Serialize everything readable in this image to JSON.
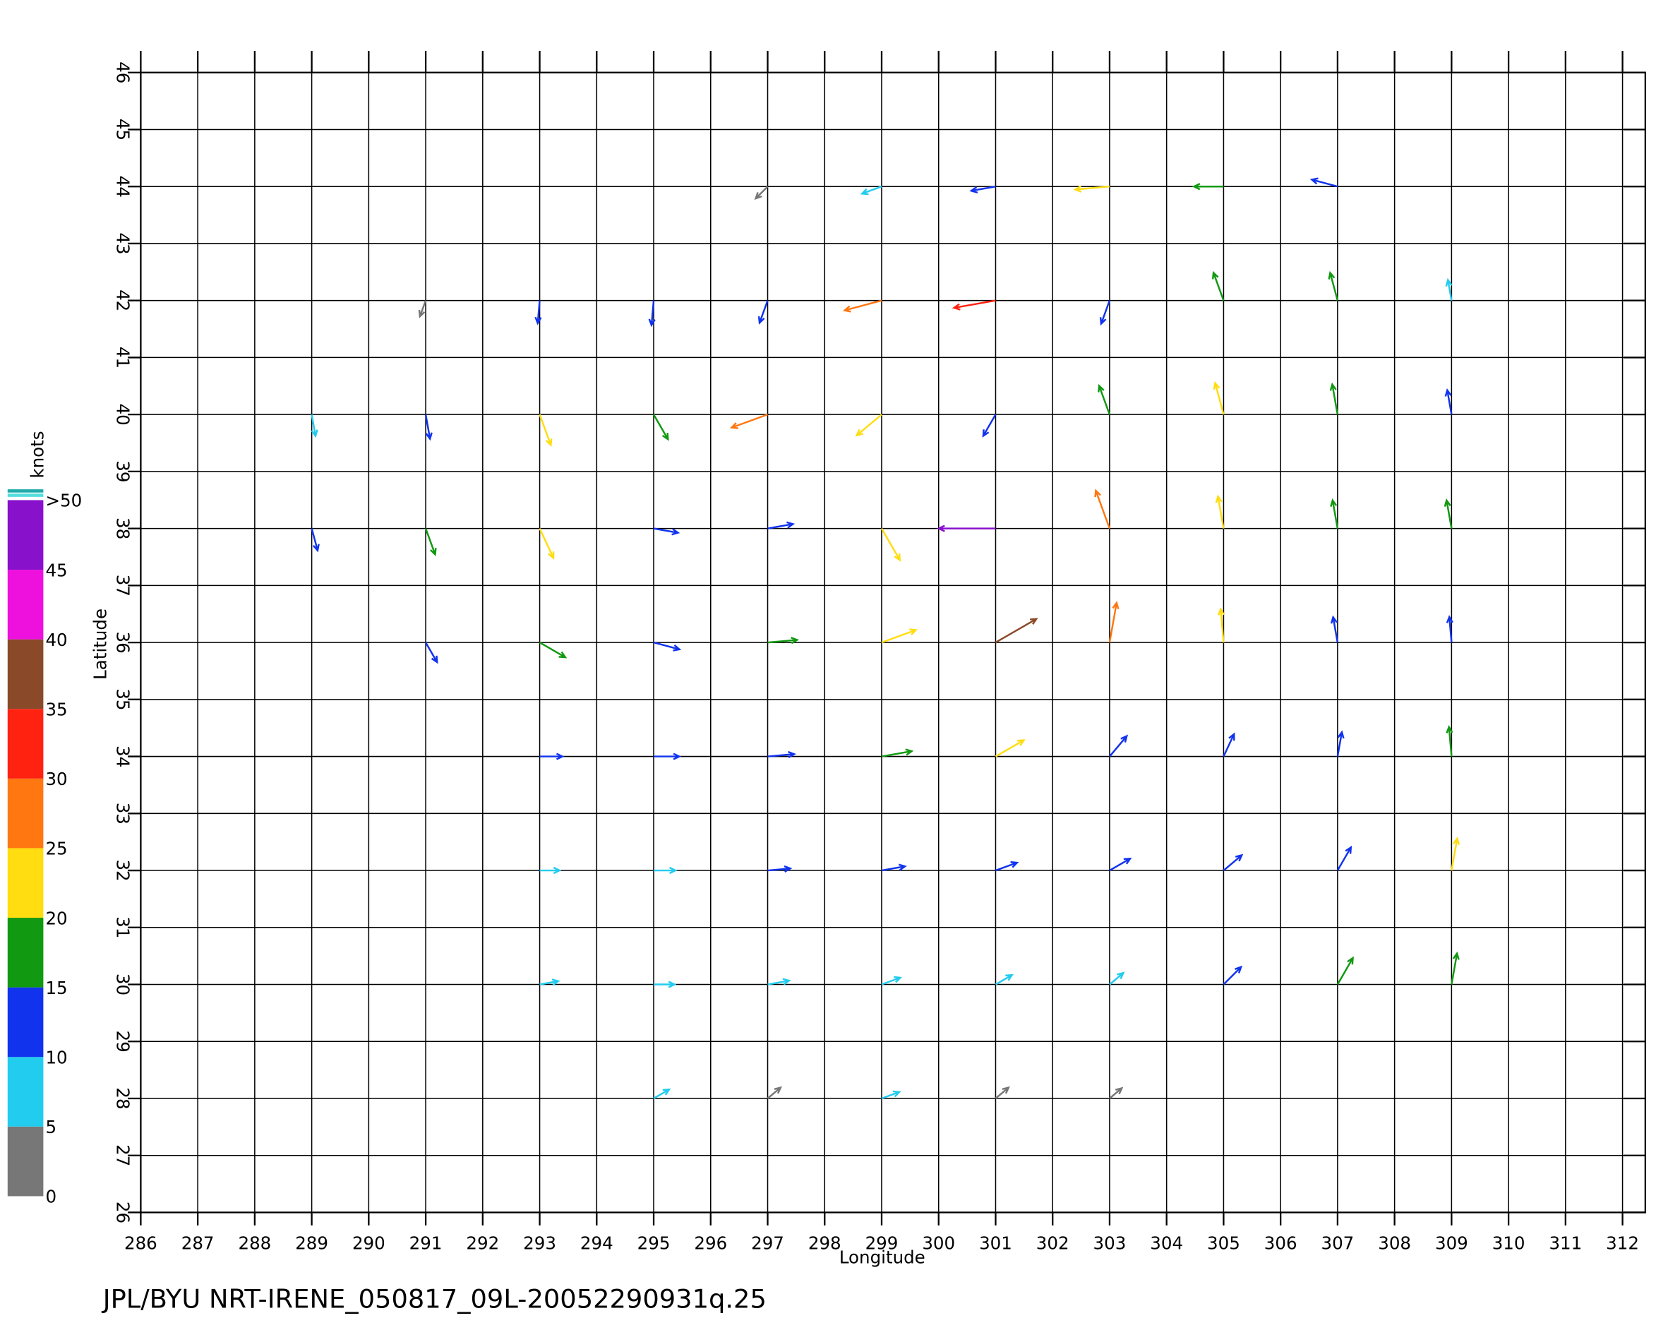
{
  "chart_data": {
    "type": "vector",
    "caption": "JPL/BYU  NRT-IRENE_050817_09L-20052290931q.25",
    "x_label": "Longitude",
    "y_label": "Latitude",
    "xlim": [
      286,
      312.4
    ],
    "ylim": [
      26,
      46
    ],
    "xticks": [
      286,
      287,
      288,
      289,
      290,
      291,
      292,
      293,
      294,
      295,
      296,
      297,
      298,
      299,
      300,
      301,
      302,
      303,
      304,
      305,
      306,
      307,
      308,
      309,
      310,
      311,
      312
    ],
    "yticks": [
      26,
      27,
      28,
      29,
      30,
      31,
      32,
      33,
      34,
      35,
      36,
      37,
      38,
      39,
      40,
      41,
      42,
      43,
      44,
      45,
      46
    ],
    "grid": true,
    "colorbar": {
      "label": "knots",
      "ticks": [
        0,
        5,
        10,
        15,
        20,
        25,
        30,
        35,
        40,
        45,
        {
          "value": 50,
          "label": ">50"
        }
      ],
      "colors": [
        "#777777",
        "#22ccee",
        "#1133ee",
        "#119911",
        "#ffdd11",
        "#ff7711",
        "#ff2211",
        "#8a4a2a",
        "#ee11dd",
        "#8811cc"
      ]
    },
    "grid_lon": [
      289,
      291,
      293,
      295,
      297,
      299,
      301,
      303,
      305,
      307,
      309
    ],
    "grid_lat": [
      44,
      42,
      40,
      38,
      36,
      34,
      32,
      30,
      28
    ],
    "speed": [
      [
        null,
        null,
        null,
        null,
        4,
        8,
        12,
        22,
        17,
        14,
        null
      ],
      [
        null,
        4,
        10,
        12,
        11,
        26,
        30,
        12,
        17,
        16,
        8
      ],
      [
        9,
        12,
        20,
        16,
        26,
        20,
        12,
        18,
        20,
        18,
        12
      ],
      [
        10,
        15,
        20,
        12,
        13,
        24,
        45,
        28,
        20,
        16,
        16
      ],
      [
        null,
        10,
        17,
        14,
        17,
        24,
        35,
        28,
        21,
        13,
        13
      ],
      [
        null,
        null,
        10,
        13,
        14,
        18,
        20,
        14,
        12,
        12,
        17
      ],
      [
        null,
        null,
        7,
        9,
        10,
        11,
        10,
        11,
        11,
        14,
        20
      ],
      [
        null,
        null,
        6,
        8,
        9,
        7,
        6,
        5,
        12,
        18,
        19
      ],
      [
        null,
        null,
        null,
        5,
        4,
        6,
        4,
        3,
        null,
        null,
        null
      ]
    ],
    "direction": [
      [
        null,
        null,
        null,
        null,
        225,
        200,
        190,
        185,
        180,
        165,
        null
      ],
      [
        null,
        250,
        265,
        265,
        250,
        195,
        190,
        250,
        110,
        105,
        100
      ],
      [
        280,
        280,
        290,
        300,
        200,
        220,
        240,
        110,
        105,
        100,
        100
      ],
      [
        285,
        290,
        295,
        350,
        10,
        300,
        180,
        110,
        100,
        100,
        100
      ],
      [
        null,
        300,
        330,
        345,
        5,
        20,
        30,
        80,
        95,
        100,
        95
      ],
      [
        null,
        null,
        0,
        0,
        5,
        10,
        30,
        50,
        65,
        80,
        95
      ],
      [
        null,
        null,
        0,
        0,
        5,
        10,
        20,
        30,
        40,
        60,
        80
      ],
      [
        null,
        null,
        10,
        0,
        10,
        20,
        30,
        40,
        45,
        60,
        80
      ],
      [
        null,
        null,
        null,
        30,
        40,
        20,
        40,
        40,
        null,
        null,
        null
      ]
    ]
  }
}
